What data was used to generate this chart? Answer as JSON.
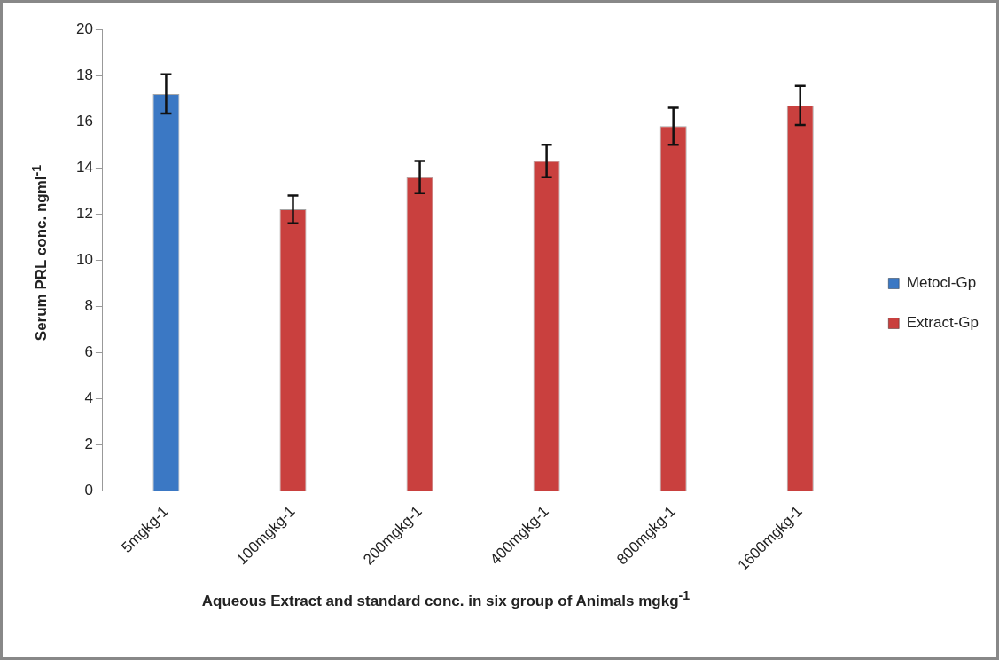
{
  "chart_data": {
    "type": "bar",
    "xlabel": "Aqueous Extract and standard conc. in six group of Animals mgkg$^{-1}$",
    "ylabel": "Serum PRL conc. ngml$^{-1}$",
    "categories": [
      "5mgkg-1",
      "100mgkg-1",
      "200mgkg-1",
      "400mgkg-1",
      "800mgkg-1",
      "1600mgkg-1"
    ],
    "series": [
      {
        "name": "Metocl-Gp",
        "color": "#3b78c4",
        "values": [
          17.2,
          null,
          null,
          null,
          null,
          null
        ],
        "errors": [
          0.85,
          null,
          null,
          null,
          null,
          null
        ]
      },
      {
        "name": "Extract-Gp",
        "color": "#c9403e",
        "values": [
          null,
          12.2,
          13.6,
          14.3,
          15.8,
          16.7
        ],
        "errors": [
          null,
          0.6,
          0.7,
          0.7,
          0.8,
          0.85
        ]
      }
    ],
    "ylim": [
      0,
      20
    ],
    "yticks": [
      0,
      2,
      4,
      6,
      8,
      10,
      12,
      14,
      16,
      18,
      20
    ],
    "grid": false,
    "legend": "right"
  }
}
